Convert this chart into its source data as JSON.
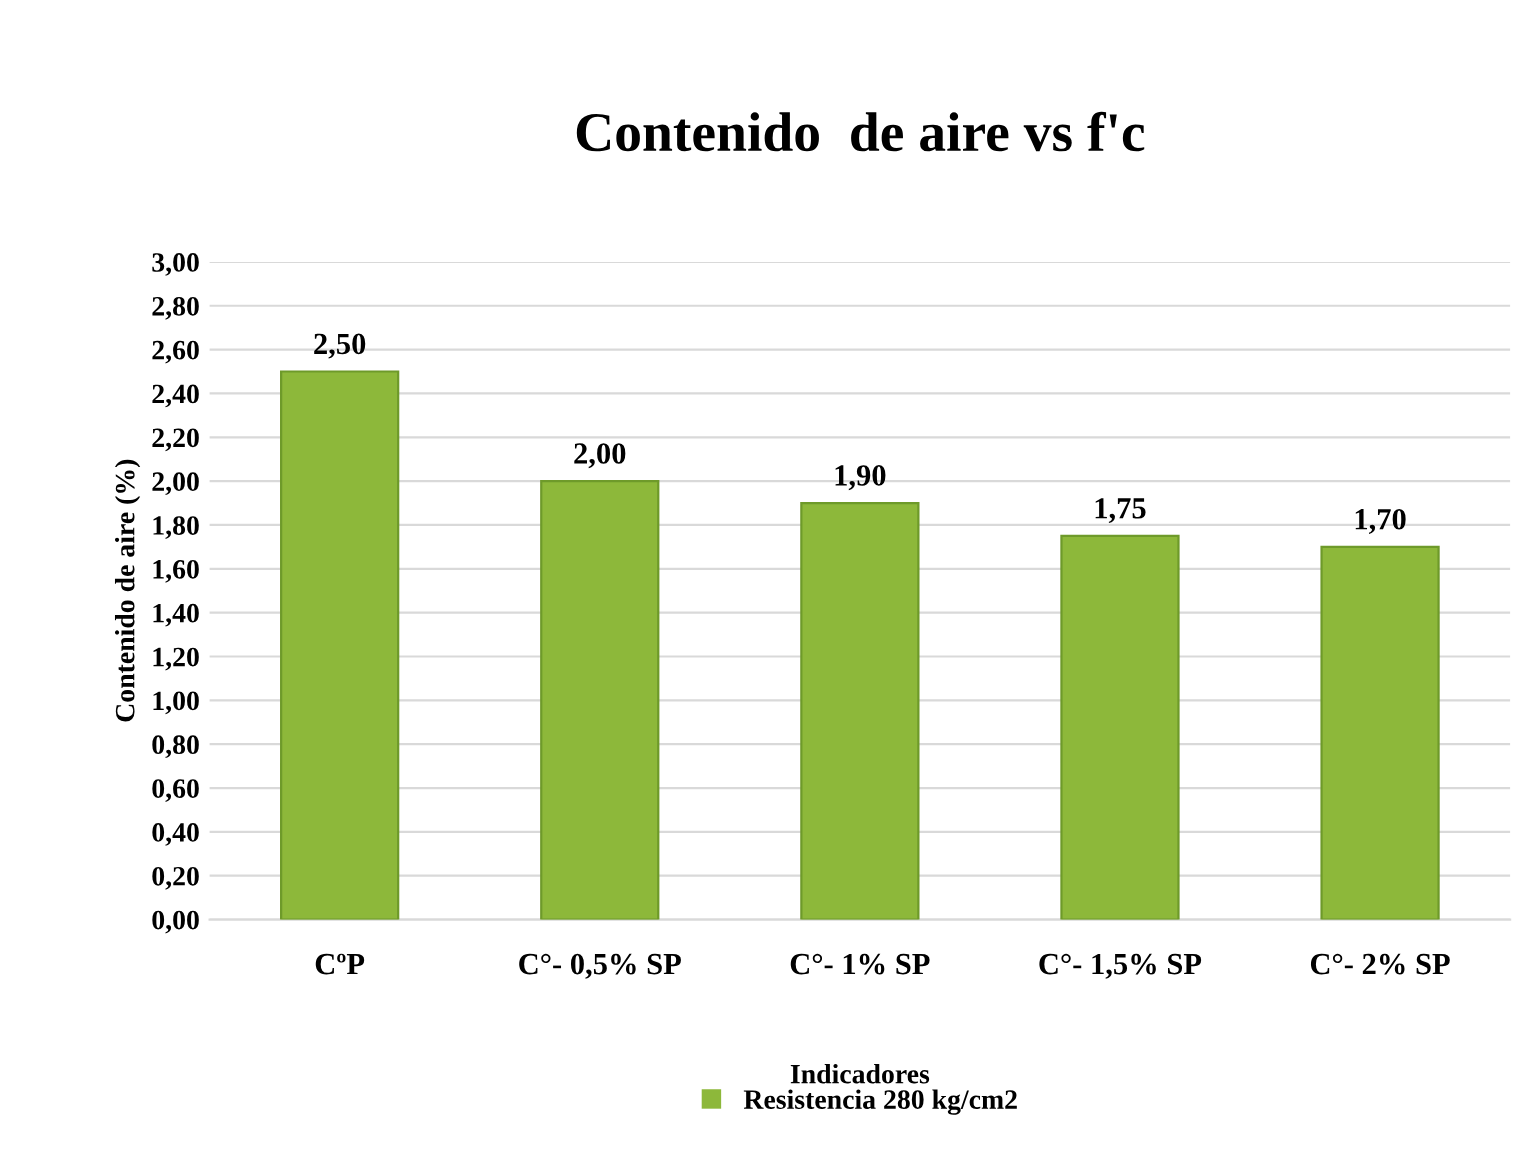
{
  "chart_data": {
    "type": "bar",
    "title": "Contenido  de aire vs f'c",
    "xlabel": "Indicadores",
    "ylabel": "Contenido de aire (%)",
    "categories": [
      "CºP",
      "C°- 0,5% SP",
      "C°- 1% SP",
      "C°- 1,5% SP",
      "C°- 2% SP"
    ],
    "series": [
      {
        "name": "Resistencia 280 kg/cm2",
        "color": "#8db83a",
        "values": [
          2.5,
          2.0,
          1.9,
          1.75,
          1.7
        ],
        "value_labels": [
          "2,50",
          "2,00",
          "1,90",
          "1,75",
          "1,70"
        ]
      }
    ],
    "ylim": [
      0,
      3
    ],
    "yticks": [
      {
        "value": 0,
        "label": "0,00"
      },
      {
        "value": 0.2,
        "label": "0,20"
      },
      {
        "value": 0.4,
        "label": "0,40"
      },
      {
        "value": 0.6,
        "label": "0,60"
      },
      {
        "value": 0.8,
        "label": "0,80"
      },
      {
        "value": 1,
        "label": "1,00"
      },
      {
        "value": 1.2,
        "label": "1,20"
      },
      {
        "value": 1.4,
        "label": "1,40"
      },
      {
        "value": 1.6,
        "label": "1,60"
      },
      {
        "value": 1.8,
        "label": "1,80"
      },
      {
        "value": 2,
        "label": "2,00"
      },
      {
        "value": 2.2,
        "label": "2,20"
      },
      {
        "value": 2.4,
        "label": "2,40"
      },
      {
        "value": 2.6,
        "label": "2,60"
      },
      {
        "value": 2.8,
        "label": "2,80"
      },
      {
        "value": 3,
        "label": "3,00"
      }
    ],
    "grid": "y",
    "legend": "bottom"
  }
}
